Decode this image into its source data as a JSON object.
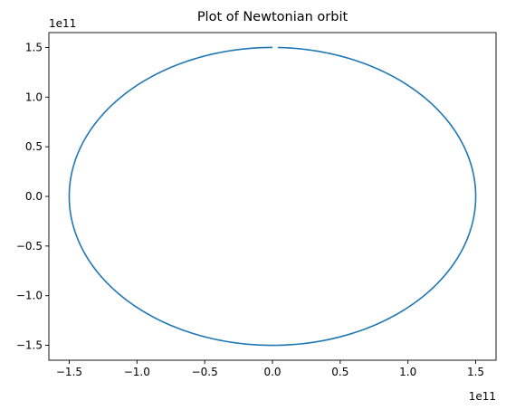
{
  "chart_data": {
    "type": "line",
    "title": "Plot of Newtonian orbit",
    "xlabel": "",
    "ylabel": "",
    "x_offset_label": "1e11",
    "y_offset_label": "1e11",
    "xlim": [
      -1.65,
      1.65
    ],
    "ylim": [
      -1.65,
      1.65
    ],
    "x_ticks": [
      -1.5,
      -1.0,
      -0.5,
      0.0,
      0.5,
      1.0,
      1.5
    ],
    "x_tick_labels": [
      "−1.5",
      "−1.0",
      "−0.5",
      "0.0",
      "0.5",
      "1.0",
      "1.5"
    ],
    "y_ticks": [
      -1.5,
      -1.0,
      -0.5,
      0.0,
      0.5,
      1.0,
      1.5
    ],
    "y_tick_labels": [
      "−1.5",
      "−1.0",
      "−0.5",
      "0.0",
      "0.5",
      "1.0",
      "1.5"
    ],
    "grid": false,
    "series": [
      {
        "color": "#1f77b4",
        "shape": "ellipse",
        "semi_axis_x": 1.5,
        "semi_axis_y": 1.5,
        "start_angle_deg": 90,
        "sweep_angle_deg": 358.5,
        "x_start": 0.0,
        "y_start": 1.5,
        "gap_at_top": true
      }
    ]
  }
}
